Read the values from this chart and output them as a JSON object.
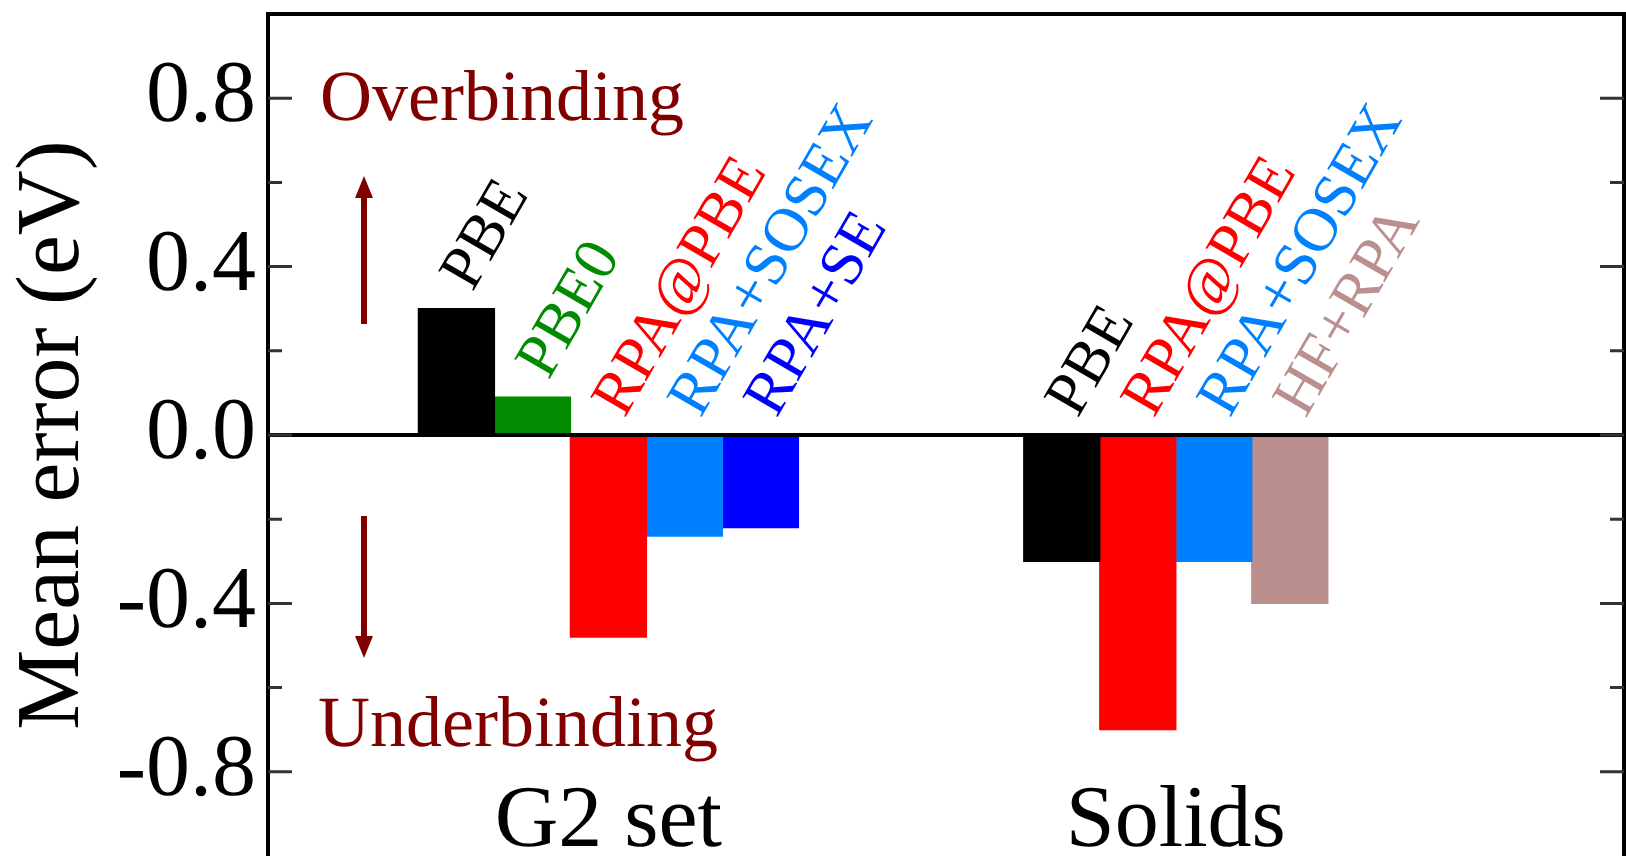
{
  "chart_data": {
    "type": "bar",
    "categories": [
      "G2 set",
      "Solids"
    ],
    "ylabel": "Mean error (eV)",
    "series": [
      {
        "name": "PBE",
        "color": "#000000",
        "values": [
          0.3,
          -0.3
        ]
      },
      {
        "name": "PBE0",
        "color": "#008b00",
        "values": [
          0.09,
          null
        ]
      },
      {
        "name": "RPA@PBE",
        "color": "#ff0000",
        "values": [
          -0.48,
          -0.7
        ]
      },
      {
        "name": "RPA+SOSEX",
        "color": "#0080ff",
        "values": [
          -0.24,
          -0.3
        ]
      },
      {
        "name": "RPA+SE",
        "color": "#0000ff",
        "values": [
          -0.22,
          null
        ]
      },
      {
        "name": "HF+RPA",
        "color": "#bc8f8f",
        "values": [
          null,
          -0.4
        ]
      }
    ],
    "ylim": [
      -1,
      1
    ],
    "yticks": [
      -0.8,
      {
        "value": -0.6,
        "label": null
      },
      -0.4,
      {
        "value": -0.2,
        "label": null
      },
      {
        "value": 0,
        "label": "0.0"
      },
      {
        "value": 0.2,
        "label": null
      },
      0.4,
      {
        "value": 0.6,
        "label": null
      },
      0.8
    ],
    "ref_lines": [
      {
        "axis": "y",
        "value": 0,
        "color": "#000000"
      }
    ],
    "annotations": [
      "Overbinding",
      "Underbinding"
    ]
  }
}
